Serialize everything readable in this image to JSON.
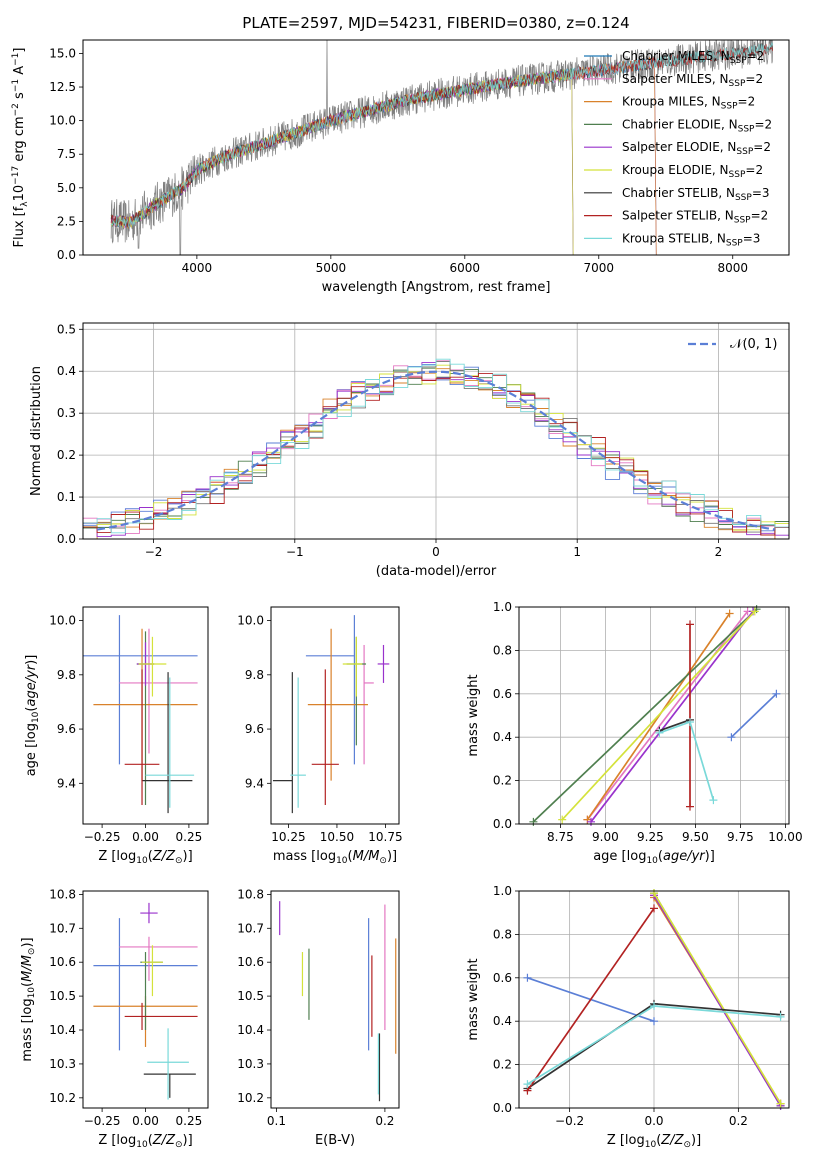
{
  "figure_title": "PLATE=2597, MJD=54231, FIBERID=0380, z=0.124",
  "colors": {
    "chabrier_miles": "#1f77b4",
    "salpeter_miles": "#e377c2",
    "kroupa_miles": "#d9822b",
    "chabrier_elodie": "#4f7f4f",
    "salpeter_elodie": "#9932cc",
    "kroupa_elodie": "#d4e23b",
    "chabrier_stelib": "#333333",
    "salpeter_stelib": "#b22222",
    "kroupa_stelib": "#7ad9d9",
    "blue_model": "#5b7fd6",
    "data_grey": "#7f7f7f",
    "grid": "#b0b0b0"
  },
  "chart_data": [
    {
      "id": "spectrum",
      "type": "line",
      "xlabel": "wavelength [Angstrom, rest frame]",
      "ylabel": "Flux [f_λ10^-17 erg cm^-2 s^-1 A^-1]",
      "xlim": [
        3150,
        8420
      ],
      "ylim": [
        0,
        16
      ],
      "xticks": [
        "4000",
        "5000",
        "6000",
        "7000",
        "8000"
      ],
      "xtick_values": [
        4000,
        5000,
        6000,
        7000,
        8000
      ],
      "yticks": [
        "0.0",
        "2.5",
        "5.0",
        "7.5",
        "10.0",
        "12.5",
        "15.0"
      ],
      "ytick_values": [
        0,
        2.5,
        5,
        7.5,
        10,
        12.5,
        15
      ],
      "grid": false,
      "legend_position": "upper-right",
      "legend": [
        {
          "base": "Chabrier MILES, N",
          "sub": "SSP",
          "tail": "=2",
          "color": "#1f77b4"
        },
        {
          "base": "Salpeter MILES, N",
          "sub": "SSP",
          "tail": "=2",
          "color": "#e377c2"
        },
        {
          "base": "Kroupa MILES, N",
          "sub": "SSP",
          "tail": "=2",
          "color": "#d9822b"
        },
        {
          "base": "Chabrier ELODIE, N",
          "sub": "SSP",
          "tail": "=2",
          "color": "#4f7f4f"
        },
        {
          "base": "Salpeter ELODIE, N",
          "sub": "SSP",
          "tail": "=2",
          "color": "#9932cc"
        },
        {
          "base": "Kroupa ELODIE, N",
          "sub": "SSP",
          "tail": "=2",
          "color": "#d4e23b"
        },
        {
          "base": "Chabrier STELIB, N",
          "sub": "SSP",
          "tail": "=3",
          "color": "#333333"
        },
        {
          "base": "Salpeter STELIB, N",
          "sub": "SSP",
          "tail": "=2",
          "color": "#b22222"
        },
        {
          "base": "Kroupa STELIB, N",
          "sub": "SSP",
          "tail": "=3",
          "color": "#7ad9d9"
        }
      ],
      "continuum": {
        "x": [
          3350,
          3500,
          3700,
          3900,
          4000,
          4200,
          4500,
          4800,
          5000,
          5300,
          5600,
          6000,
          6300,
          6600,
          6900,
          7200,
          7500,
          7800,
          8100,
          8300
        ],
        "y": [
          2.6,
          2.4,
          3.8,
          5.0,
          6.3,
          7.3,
          8.3,
          9.3,
          10.0,
          10.8,
          11.6,
          12.3,
          12.8,
          13.2,
          13.6,
          14.0,
          14.4,
          14.8,
          15.1,
          15.4
        ]
      },
      "features": {
        "elodie_drop_x": [
          6800,
          6830
        ],
        "miles_drop_x": [
          7420,
          7450
        ],
        "data_spike_x": 4970
      }
    },
    {
      "id": "residuals",
      "type": "bar",
      "xlabel": "(data-model)/error",
      "ylabel": "Normed distribution",
      "xlim": [
        -2.5,
        2.5
      ],
      "ylim": [
        0,
        0.515
      ],
      "xticks": [
        "−2",
        "−1",
        "0",
        "1",
        "2"
      ],
      "xtick_values": [
        -2,
        -1,
        0,
        1,
        2
      ],
      "yticks": [
        "0.0",
        "0.1",
        "0.2",
        "0.3",
        "0.4",
        "0.5"
      ],
      "ytick_values": [
        0,
        0.1,
        0.2,
        0.3,
        0.4,
        0.5
      ],
      "grid": true,
      "legend_position": "upper-right",
      "legend_label": "𝒩(0, 1)",
      "bin_width": 0.1,
      "reference_curve": "gaussian mean 0 sigma 1"
    },
    {
      "id": "age_vs_Z",
      "type": "scatter",
      "xlabel": "Z [log10(Z/Z⊙)]",
      "ylabel": "age  [log10(age/yr)]",
      "xlim": [
        -0.36,
        0.36
      ],
      "ylim": [
        9.25,
        10.05
      ],
      "xticks": [
        "−0.25",
        "0.00",
        "0.25"
      ],
      "xtick_values": [
        -0.25,
        0,
        0.25
      ],
      "yticks": [
        "9.4",
        "9.6",
        "9.8",
        "10.0"
      ],
      "ytick_values": [
        9.4,
        9.6,
        9.8,
        10.0
      ],
      "grid": false,
      "points": [
        {
          "x": -0.15,
          "y": 9.87,
          "xerr": [
            0.45,
            0.45
          ],
          "yerr": [
            0.4,
            0.15
          ],
          "color": "#5b7fd6"
        },
        {
          "x": 0.02,
          "y": 9.77,
          "xerr": [
            0.17,
            0.28
          ],
          "yerr": [
            0.26,
            0.2
          ],
          "color": "#e377c2"
        },
        {
          "x": -0.02,
          "y": 9.69,
          "xerr": [
            0.28,
            0.32
          ],
          "yerr": [
            0.28,
            0.28
          ],
          "color": "#d9822b"
        },
        {
          "x": 0.0,
          "y": 9.84,
          "xerr": [
            0.05,
            0.05
          ],
          "yerr": [
            0.52,
            0.12
          ],
          "color": "#4f7f4f"
        },
        {
          "x": 0.0,
          "y": 9.84,
          "xerr": [
            0.05,
            0.05
          ],
          "yerr": [
            0.08,
            0.08
          ],
          "color": "#9932cc"
        },
        {
          "x": 0.04,
          "y": 9.84,
          "xerr": [
            0.08,
            0.08
          ],
          "yerr": [
            0.12,
            0.1
          ],
          "color": "#d4e23b"
        },
        {
          "x": 0.13,
          "y": 9.41,
          "xerr": [
            0.15,
            0.14
          ],
          "yerr": [
            0.12,
            0.4
          ],
          "color": "#333333"
        },
        {
          "x": -0.02,
          "y": 9.47,
          "xerr": [
            0.1,
            0.1
          ],
          "yerr": [
            0.15,
            0.35
          ],
          "color": "#b22222"
        },
        {
          "x": 0.14,
          "y": 9.43,
          "xerr": [
            0.14,
            0.14
          ],
          "yerr": [
            0.12,
            0.36
          ],
          "color": "#7ad9d9"
        }
      ]
    },
    {
      "id": "age_vs_mass",
      "type": "scatter",
      "xlabel": "mass [log10(M/M⊙)]",
      "ylabel": "",
      "xlim": [
        10.16,
        10.82
      ],
      "ylim": [
        9.25,
        10.05
      ],
      "xticks": [
        "10.25",
        "10.50",
        "10.75"
      ],
      "xtick_values": [
        10.25,
        10.5,
        10.75
      ],
      "yticks": [
        "9.4",
        "9.6",
        "9.8",
        "10.0"
      ],
      "ytick_values": [
        9.4,
        9.6,
        9.8,
        10.0
      ],
      "grid": false,
      "points": [
        {
          "x": 10.59,
          "y": 9.87,
          "xerr": [
            0.25,
            0.0
          ],
          "yerr": [
            0.4,
            0.15
          ],
          "color": "#5b7fd6"
        },
        {
          "x": 10.64,
          "y": 9.77,
          "xerr": [
            0.0,
            0.05
          ],
          "yerr": [
            0.3,
            0.14
          ],
          "color": "#e377c2"
        },
        {
          "x": 10.47,
          "y": 9.69,
          "xerr": [
            0.12,
            0.19
          ],
          "yerr": [
            0.28,
            0.28
          ],
          "color": "#d9822b"
        },
        {
          "x": 10.6,
          "y": 9.84,
          "xerr": [
            0.05,
            0.05
          ],
          "yerr": [
            0.3,
            0.1
          ],
          "color": "#4f7f4f"
        },
        {
          "x": 10.74,
          "y": 9.84,
          "xerr": [
            0.03,
            0.03
          ],
          "yerr": [
            0.07,
            0.07
          ],
          "color": "#9932cc"
        },
        {
          "x": 10.6,
          "y": 9.84,
          "xerr": [
            0.07,
            0.03
          ],
          "yerr": [
            0.12,
            0.1
          ],
          "color": "#d4e23b"
        },
        {
          "x": 10.27,
          "y": 9.41,
          "xerr": [
            0.1,
            0.0
          ],
          "yerr": [
            0.12,
            0.4
          ],
          "color": "#333333"
        },
        {
          "x": 10.44,
          "y": 9.47,
          "xerr": [
            0.07,
            0.07
          ],
          "yerr": [
            0.15,
            0.35
          ],
          "color": "#b22222"
        },
        {
          "x": 10.3,
          "y": 9.43,
          "xerr": [
            0.04,
            0.04
          ],
          "yerr": [
            0.12,
            0.36
          ],
          "color": "#7ad9d9"
        }
      ]
    },
    {
      "id": "weight_vs_age",
      "type": "line",
      "xlabel": "age  [log10(age/yr)]",
      "ylabel": "mass weight",
      "xlim": [
        8.52,
        10.02
      ],
      "ylim": [
        0,
        1
      ],
      "xticks": [
        "8.75",
        "9.00",
        "9.25",
        "9.50",
        "9.75",
        "10.00"
      ],
      "xtick_values": [
        8.75,
        9.0,
        9.25,
        9.5,
        9.75,
        10.0
      ],
      "yticks": [
        "0.0",
        "0.2",
        "0.4",
        "0.6",
        "0.8",
        "1.0"
      ],
      "ytick_values": [
        0,
        0.2,
        0.4,
        0.6,
        0.8,
        1.0
      ],
      "grid": true,
      "series": [
        {
          "x": [
            9.7,
            9.95
          ],
          "y": [
            0.4,
            0.6
          ],
          "color": "#5b7fd6"
        },
        {
          "x": [
            8.9,
            9.79
          ],
          "y": [
            0.02,
            0.98
          ],
          "color": "#e377c2"
        },
        {
          "x": [
            8.9,
            9.69
          ],
          "y": [
            0.02,
            0.97
          ],
          "color": "#d9822b"
        },
        {
          "x": [
            8.6,
            9.84
          ],
          "y": [
            0.01,
            0.99
          ],
          "color": "#4f7f4f"
        },
        {
          "x": [
            8.92,
            9.82
          ],
          "y": [
            0.01,
            0.98
          ],
          "color": "#9932cc"
        },
        {
          "x": [
            8.76,
            9.83
          ],
          "y": [
            0.02,
            0.98
          ],
          "color": "#d4e23b"
        },
        {
          "x": [
            9.3,
            9.47
          ],
          "y": [
            0.43,
            0.48
          ],
          "color": "#333333"
        },
        {
          "x": [
            9.47,
            9.47
          ],
          "y": [
            0.08,
            0.92
          ],
          "color": "#b22222"
        },
        {
          "x": [
            9.3,
            9.47,
            9.6
          ],
          "y": [
            0.42,
            0.47,
            0.11
          ],
          "color": "#7ad9d9"
        }
      ]
    },
    {
      "id": "mass_vs_Z",
      "type": "scatter",
      "xlabel": "Z [log10(Z/Z⊙)]",
      "ylabel": "mass [log10(M/M⊙)]",
      "xlim": [
        -0.36,
        0.36
      ],
      "ylim": [
        10.17,
        10.81
      ],
      "xticks": [
        "−0.25",
        "0.00",
        "0.25"
      ],
      "xtick_values": [
        -0.25,
        0,
        0.25
      ],
      "yticks": [
        "10.2",
        "10.3",
        "10.4",
        "10.5",
        "10.6",
        "10.7",
        "10.8"
      ],
      "ytick_values": [
        10.2,
        10.3,
        10.4,
        10.5,
        10.6,
        10.7,
        10.8
      ],
      "grid": false,
      "points": [
        {
          "x": -0.15,
          "y": 10.59,
          "xerr": [
            0.15,
            0.45
          ],
          "yerr": [
            0.25,
            0.14
          ],
          "color": "#5b7fd6"
        },
        {
          "x": 0.02,
          "y": 10.645,
          "xerr": [
            0.17,
            0.28
          ],
          "yerr": [
            0.1,
            0.03
          ],
          "color": "#e377c2"
        },
        {
          "x": 0.0,
          "y": 10.47,
          "xerr": [
            0.3,
            0.3
          ],
          "yerr": [
            0.12,
            0.03
          ],
          "color": "#d9822b"
        },
        {
          "x": 0.0,
          "y": 10.6,
          "xerr": [
            0.03,
            0.1
          ],
          "yerr": [
            0.2,
            0.03
          ],
          "color": "#4f7f4f"
        },
        {
          "x": 0.02,
          "y": 10.745,
          "xerr": [
            0.05,
            0.05
          ],
          "yerr": [
            0.03,
            0.03
          ],
          "color": "#9932cc"
        },
        {
          "x": 0.04,
          "y": 10.6,
          "xerr": [
            0.06,
            0.06
          ],
          "yerr": [
            0.1,
            0.05
          ],
          "color": "#d4e23b"
        },
        {
          "x": 0.14,
          "y": 10.27,
          "xerr": [
            0.15,
            0.15
          ],
          "yerr": [
            0.07,
            0.0
          ],
          "color": "#333333"
        },
        {
          "x": -0.02,
          "y": 10.44,
          "xerr": [
            0.1,
            0.32
          ],
          "yerr": [
            0.04,
            0.04
          ],
          "color": "#b22222"
        },
        {
          "x": 0.13,
          "y": 10.305,
          "xerr": [
            0.12,
            0.12
          ],
          "yerr": [
            0.11,
            0.1
          ],
          "color": "#7ad9d9"
        }
      ]
    },
    {
      "id": "mass_vs_EBV",
      "type": "scatter",
      "xlabel": "E(B-V)",
      "ylabel": "",
      "xlim": [
        0.095,
        0.213
      ],
      "ylim": [
        10.17,
        10.81
      ],
      "xticks": [
        "0.1",
        "0.2"
      ],
      "xtick_values": [
        0.1,
        0.2
      ],
      "yticks": [
        "10.2",
        "10.3",
        "10.4",
        "10.5",
        "10.6",
        "10.7",
        "10.8"
      ],
      "ytick_values": [
        10.2,
        10.3,
        10.4,
        10.5,
        10.6,
        10.7,
        10.8
      ],
      "grid": false,
      "points": [
        {
          "x": 0.185,
          "y": 10.59,
          "yerr": [
            0.25,
            0.14
          ],
          "color": "#5b7fd6"
        },
        {
          "x": 0.2,
          "y": 10.6,
          "yerr": [
            0.2,
            0.17
          ],
          "color": "#e377c2"
        },
        {
          "x": 0.21,
          "y": 10.5,
          "yerr": [
            0.17,
            0.17
          ],
          "color": "#d9822b"
        },
        {
          "x": 0.13,
          "y": 10.53,
          "yerr": [
            0.1,
            0.11
          ],
          "color": "#4f7f4f"
        },
        {
          "x": 0.103,
          "y": 10.73,
          "yerr": [
            0.05,
            0.05
          ],
          "color": "#9932cc"
        },
        {
          "x": 0.124,
          "y": 10.56,
          "yerr": [
            0.06,
            0.07
          ],
          "color": "#d4e23b"
        },
        {
          "x": 0.195,
          "y": 10.29,
          "yerr": [
            0.1,
            0.1
          ],
          "color": "#333333"
        },
        {
          "x": 0.188,
          "y": 10.5,
          "yerr": [
            0.12,
            0.12
          ],
          "color": "#b22222"
        },
        {
          "x": 0.194,
          "y": 10.3,
          "yerr": [
            0.09,
            0.09
          ],
          "color": "#7ad9d9"
        }
      ]
    },
    {
      "id": "weight_vs_Z",
      "type": "line",
      "xlabel": "Z [log10(Z/Z⊙)]",
      "ylabel": "mass weight",
      "xlim": [
        -0.32,
        0.32
      ],
      "ylim": [
        0,
        1
      ],
      "xticks": [
        "−0.2",
        "0.0",
        "0.2"
      ],
      "xtick_values": [
        -0.2,
        0,
        0.2
      ],
      "yticks": [
        "0.0",
        "0.2",
        "0.4",
        "0.6",
        "0.8",
        "1.0"
      ],
      "ytick_values": [
        0,
        0.2,
        0.4,
        0.6,
        0.8,
        1.0
      ],
      "grid": true,
      "series": [
        {
          "x": [
            -0.3,
            0.0
          ],
          "y": [
            0.6,
            0.4
          ],
          "color": "#5b7fd6"
        },
        {
          "x": [
            0.0,
            0.3
          ],
          "y": [
            0.98,
            0.02
          ],
          "color": "#e377c2"
        },
        {
          "x": [
            0.0,
            0.3
          ],
          "y": [
            0.97,
            0.02
          ],
          "color": "#d9822b"
        },
        {
          "x": [
            0.0,
            0.3
          ],
          "y": [
            0.99,
            0.01
          ],
          "color": "#4f7f4f"
        },
        {
          "x": [
            0.0,
            0.3
          ],
          "y": [
            0.98,
            0.01
          ],
          "color": "#9932cc"
        },
        {
          "x": [
            0.0,
            0.3
          ],
          "y": [
            0.99,
            0.02
          ],
          "color": "#d4e23b"
        },
        {
          "x": [
            -0.3,
            0.0,
            0.3
          ],
          "y": [
            0.09,
            0.48,
            0.43
          ],
          "color": "#333333"
        },
        {
          "x": [
            -0.3,
            0.0
          ],
          "y": [
            0.08,
            0.92
          ],
          "color": "#b22222"
        },
        {
          "x": [
            -0.3,
            0.0,
            0.3
          ],
          "y": [
            0.11,
            0.47,
            0.42
          ],
          "color": "#7ad9d9"
        }
      ]
    }
  ]
}
